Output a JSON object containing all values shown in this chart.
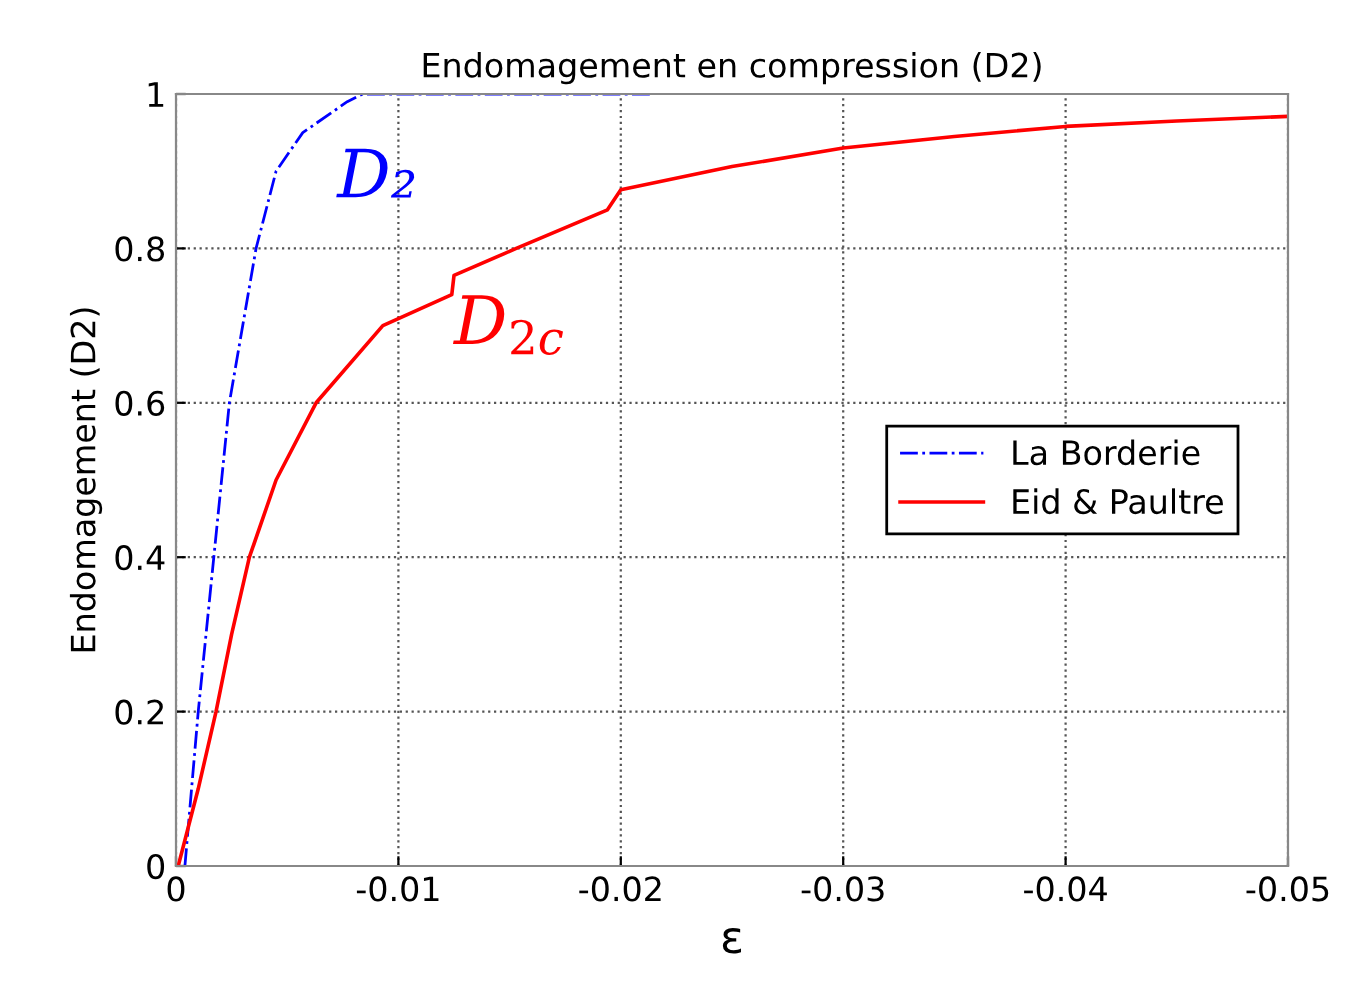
{
  "chart_data": {
    "type": "line",
    "title": "Endomagement en compression (D2)",
    "xlabel": "ε",
    "ylabel": "Endomagement (D2)",
    "xlim": [
      0,
      -0.05
    ],
    "xticks": [
      0,
      -0.01,
      -0.02,
      -0.03,
      -0.04,
      -0.05
    ],
    "ylim": [
      0,
      1
    ],
    "yticks": [
      0,
      0.2,
      0.4,
      0.6,
      0.8,
      1
    ],
    "grid": true,
    "legend": "right",
    "series": [
      {
        "name": "La Borderie",
        "color": "#0000ff",
        "line_style": "dashdot",
        "x": [
          -0.0004,
          -0.001,
          -0.0017,
          -0.0024,
          -0.0036,
          -0.0045,
          -0.0057,
          -0.0077,
          -0.0084,
          -0.0215
        ],
        "values": [
          0,
          0.2,
          0.4,
          0.6,
          0.8,
          0.9,
          0.95,
          0.99,
          1,
          1
        ]
      },
      {
        "name": "Eid & Paultre",
        "color": "#ff0000",
        "line_style": "solid",
        "x": [
          -0.0001,
          -0.001,
          -0.0018,
          -0.0025,
          -0.0033,
          -0.0045,
          -0.0063,
          -0.0093,
          -0.0124,
          -0.0125,
          -0.0153,
          -0.0194,
          -0.02,
          -0.025,
          -0.03,
          -0.035,
          -0.04,
          -0.045,
          -0.05
        ],
        "values": [
          0,
          0.1,
          0.2,
          0.3,
          0.4,
          0.5,
          0.6,
          0.7,
          0.74,
          0.765,
          0.8,
          0.85,
          0.876,
          0.906,
          0.93,
          0.945,
          0.958,
          0.965,
          0.971
        ]
      }
    ],
    "annotations": [
      "D₂",
      "D$_{2c}$"
    ]
  }
}
